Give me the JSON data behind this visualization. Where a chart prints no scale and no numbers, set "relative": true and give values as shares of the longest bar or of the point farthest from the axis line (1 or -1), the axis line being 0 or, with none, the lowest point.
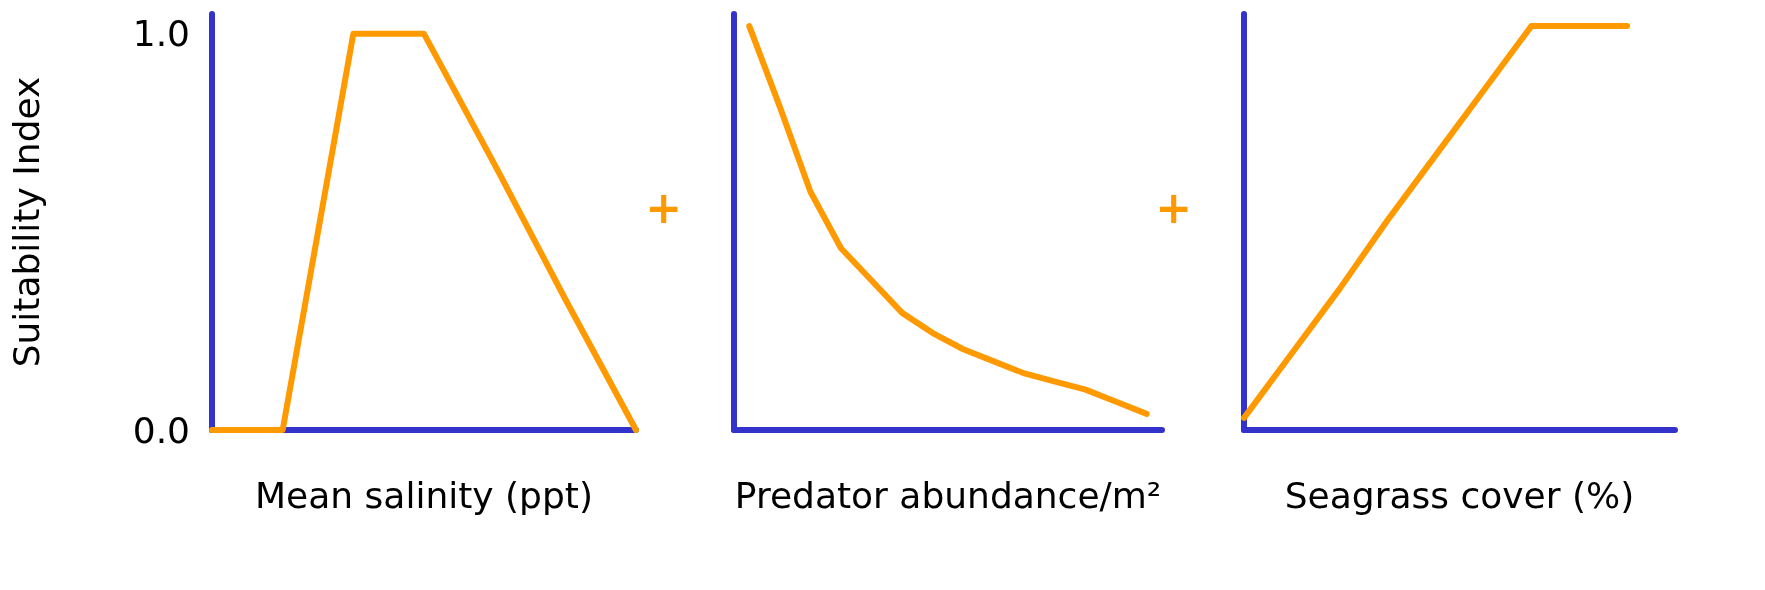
{
  "chart_data": [
    {
      "type": "line",
      "ylabel": "Suitability Index",
      "xlabel": "Mean salinity (ppt)",
      "categories": [
        null,
        null,
        null,
        null,
        null,
        null,
        null
      ],
      "series": [
        {
          "color": "#ff9900",
          "values": [
            0,
            0,
            1,
            1,
            0.67,
            0.33,
            0
          ]
        }
      ],
      "ylim": [
        0,
        1.05
      ],
      "yticks": [
        {
          "value": 0,
          "label": "0.0"
        },
        {
          "value": 1,
          "label": "1.0"
        }
      ],
      "tick_labels": "y",
      "grid": false,
      "marker": "none",
      "annotations": [
        "+"
      ]
    },
    {
      "type": "line",
      "relative": true,
      "xlabel": "Predator abundance/m²",
      "categories": [
        null,
        null,
        null,
        null,
        null,
        null,
        null,
        null,
        null,
        null,
        null,
        null,
        null,
        null
      ],
      "series": [
        {
          "color": "#ff9900",
          "values": [
            1,
            0.8,
            0.59,
            0.45,
            0.37,
            0.29,
            0.24,
            0.2,
            0.17,
            0.14,
            0.12,
            0.1,
            0.07,
            0.04
          ]
        }
      ],
      "tick_labels": false,
      "grid": false,
      "marker": "none",
      "annotations": [
        "+"
      ]
    },
    {
      "type": "line",
      "relative": true,
      "xlabel": "Seagrass cover (%)",
      "categories": [
        null,
        null,
        null,
        null,
        null,
        null,
        null,
        null,
        null,
        null
      ],
      "series": [
        {
          "color": "#ff9900",
          "values": [
            0.03,
            0.19,
            0.35,
            0.52,
            0.68,
            0.84,
            1,
            1,
            1,
            null
          ]
        }
      ],
      "tick_labels": false,
      "grid": false,
      "marker": "none"
    }
  ]
}
